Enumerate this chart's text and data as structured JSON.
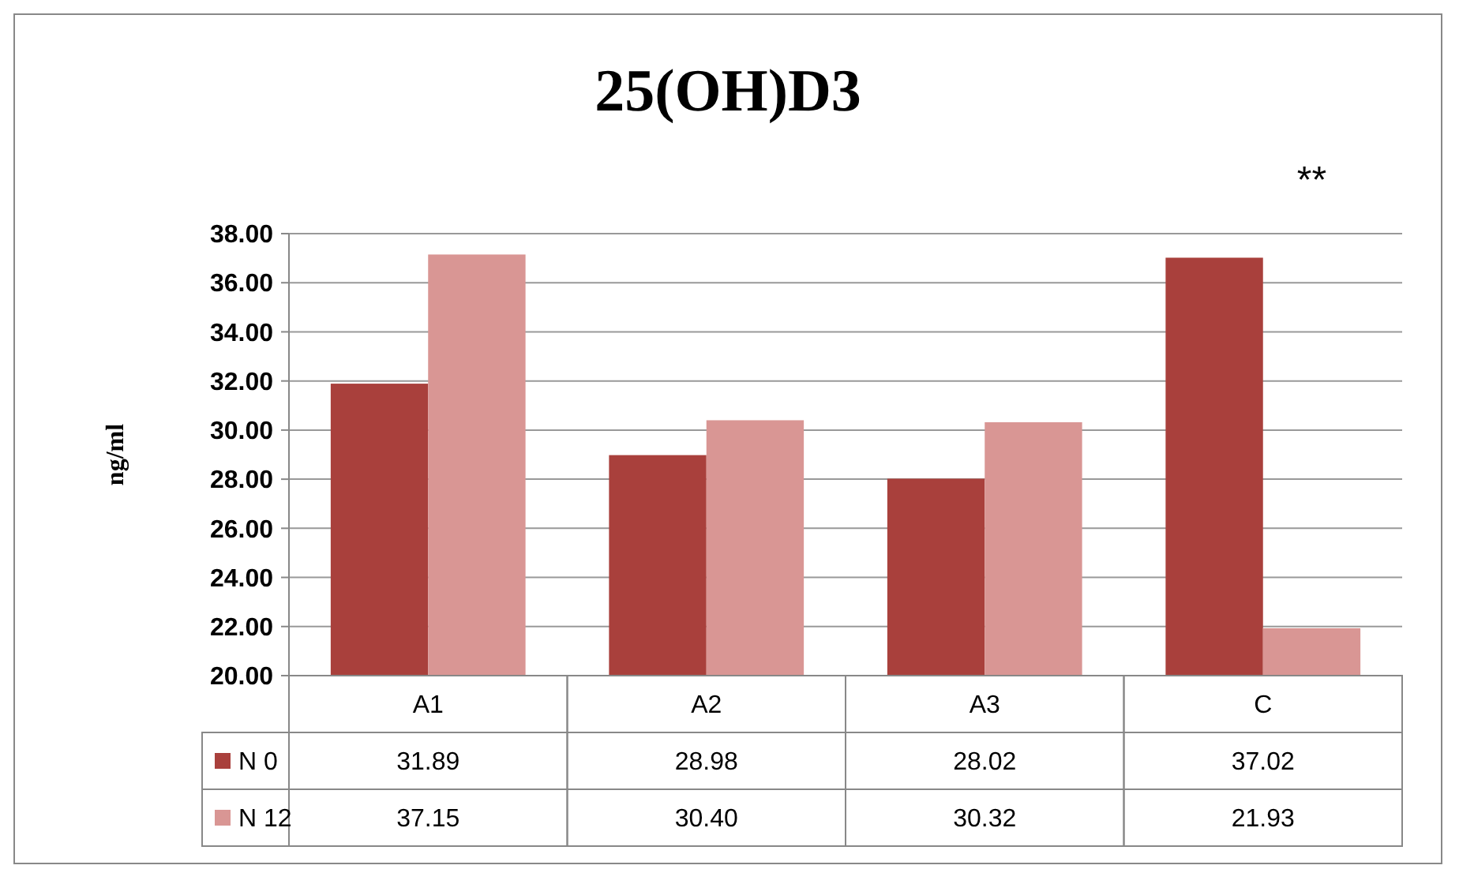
{
  "chart_data": {
    "type": "bar",
    "title": "25(OH)D3",
    "ylabel": "ng/ml",
    "categories": [
      "A1",
      "A2",
      "A3",
      "C"
    ],
    "series": [
      {
        "name": "N 0",
        "color": "#a9403c",
        "values": [
          31.89,
          28.98,
          28.02,
          37.02
        ],
        "value_labels": [
          "31.89",
          "28.98",
          "28.02",
          "37.02"
        ]
      },
      {
        "name": "N 12",
        "color": "#d99694",
        "values": [
          37.15,
          30.4,
          30.32,
          21.93
        ],
        "value_labels": [
          "37.15",
          "30.40",
          "30.32",
          "21.93"
        ]
      }
    ],
    "ylim": [
      20,
      38
    ],
    "yticks": [
      {
        "value": 20,
        "label": "20.00"
      },
      {
        "value": 22,
        "label": "22.00"
      },
      {
        "value": 24,
        "label": "24.00"
      },
      {
        "value": 26,
        "label": "26.00"
      },
      {
        "value": 28,
        "label": "28.00"
      },
      {
        "value": 30,
        "label": "30.00"
      },
      {
        "value": 32,
        "label": "32.00"
      },
      {
        "value": 34,
        "label": "34.00"
      },
      {
        "value": 36,
        "label": "36.00"
      },
      {
        "value": 38,
        "label": "38.00"
      }
    ],
    "grid": "y",
    "legend": "left",
    "annotations": [
      "**"
    ]
  }
}
